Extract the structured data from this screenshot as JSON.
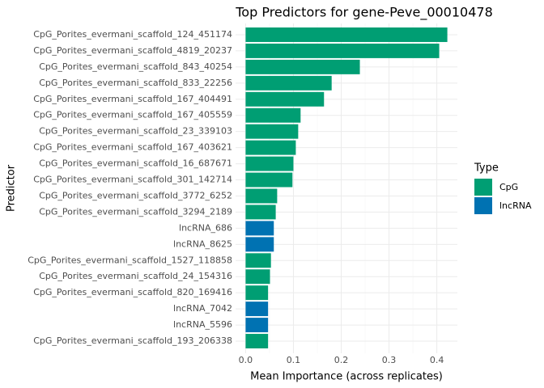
{
  "chart_data": {
    "type": "bar",
    "orientation": "horizontal",
    "title": "Top Predictors for gene-Peve_00010478",
    "xlabel": "Mean Importance (across replicates)",
    "ylabel": "Predictor",
    "categories": [
      "CpG_Porites_evermani_scaffold_124_451174",
      "CpG_Porites_evermani_scaffold_4819_20237",
      "CpG_Porites_evermani_scaffold_843_40254",
      "CpG_Porites_evermani_scaffold_833_22256",
      "CpG_Porites_evermani_scaffold_167_404491",
      "CpG_Porites_evermani_scaffold_167_405559",
      "CpG_Porites_evermani_scaffold_23_339103",
      "CpG_Porites_evermani_scaffold_167_403621",
      "CpG_Porites_evermani_scaffold_16_687671",
      "CpG_Porites_evermani_scaffold_301_142714",
      "CpG_Porites_evermani_scaffold_3772_6252",
      "CpG_Porites_evermani_scaffold_3294_2189",
      "lncRNA_686",
      "lncRNA_8625",
      "CpG_Porites_evermani_scaffold_1527_118858",
      "CpG_Porites_evermani_scaffold_24_154316",
      "CpG_Porites_evermani_scaffold_820_169416",
      "lncRNA_7042",
      "lncRNA_5596",
      "CpG_Porites_evermani_scaffold_193_206338"
    ],
    "series": [
      {
        "name": "CpG",
        "color": "#009E73",
        "values": [
          0.422,
          0.405,
          0.239,
          0.18,
          0.164,
          0.115,
          0.11,
          0.105,
          0.1,
          0.098,
          0.066,
          0.063,
          null,
          null,
          0.053,
          0.051,
          0.047,
          null,
          null,
          0.047
        ]
      },
      {
        "name": "lncRNA",
        "color": "#0072B2",
        "values": [
          null,
          null,
          null,
          null,
          null,
          null,
          null,
          null,
          null,
          null,
          null,
          null,
          0.059,
          0.059,
          null,
          null,
          null,
          0.047,
          0.047,
          null
        ]
      }
    ],
    "legend_title": "Type",
    "legend": "right",
    "xlim": [
      -0.021,
      0.443
    ],
    "xticks": [
      {
        "value": 0,
        "label": "0.0"
      },
      0.1,
      0.2,
      0.3,
      0.4
    ],
    "grid": true
  }
}
